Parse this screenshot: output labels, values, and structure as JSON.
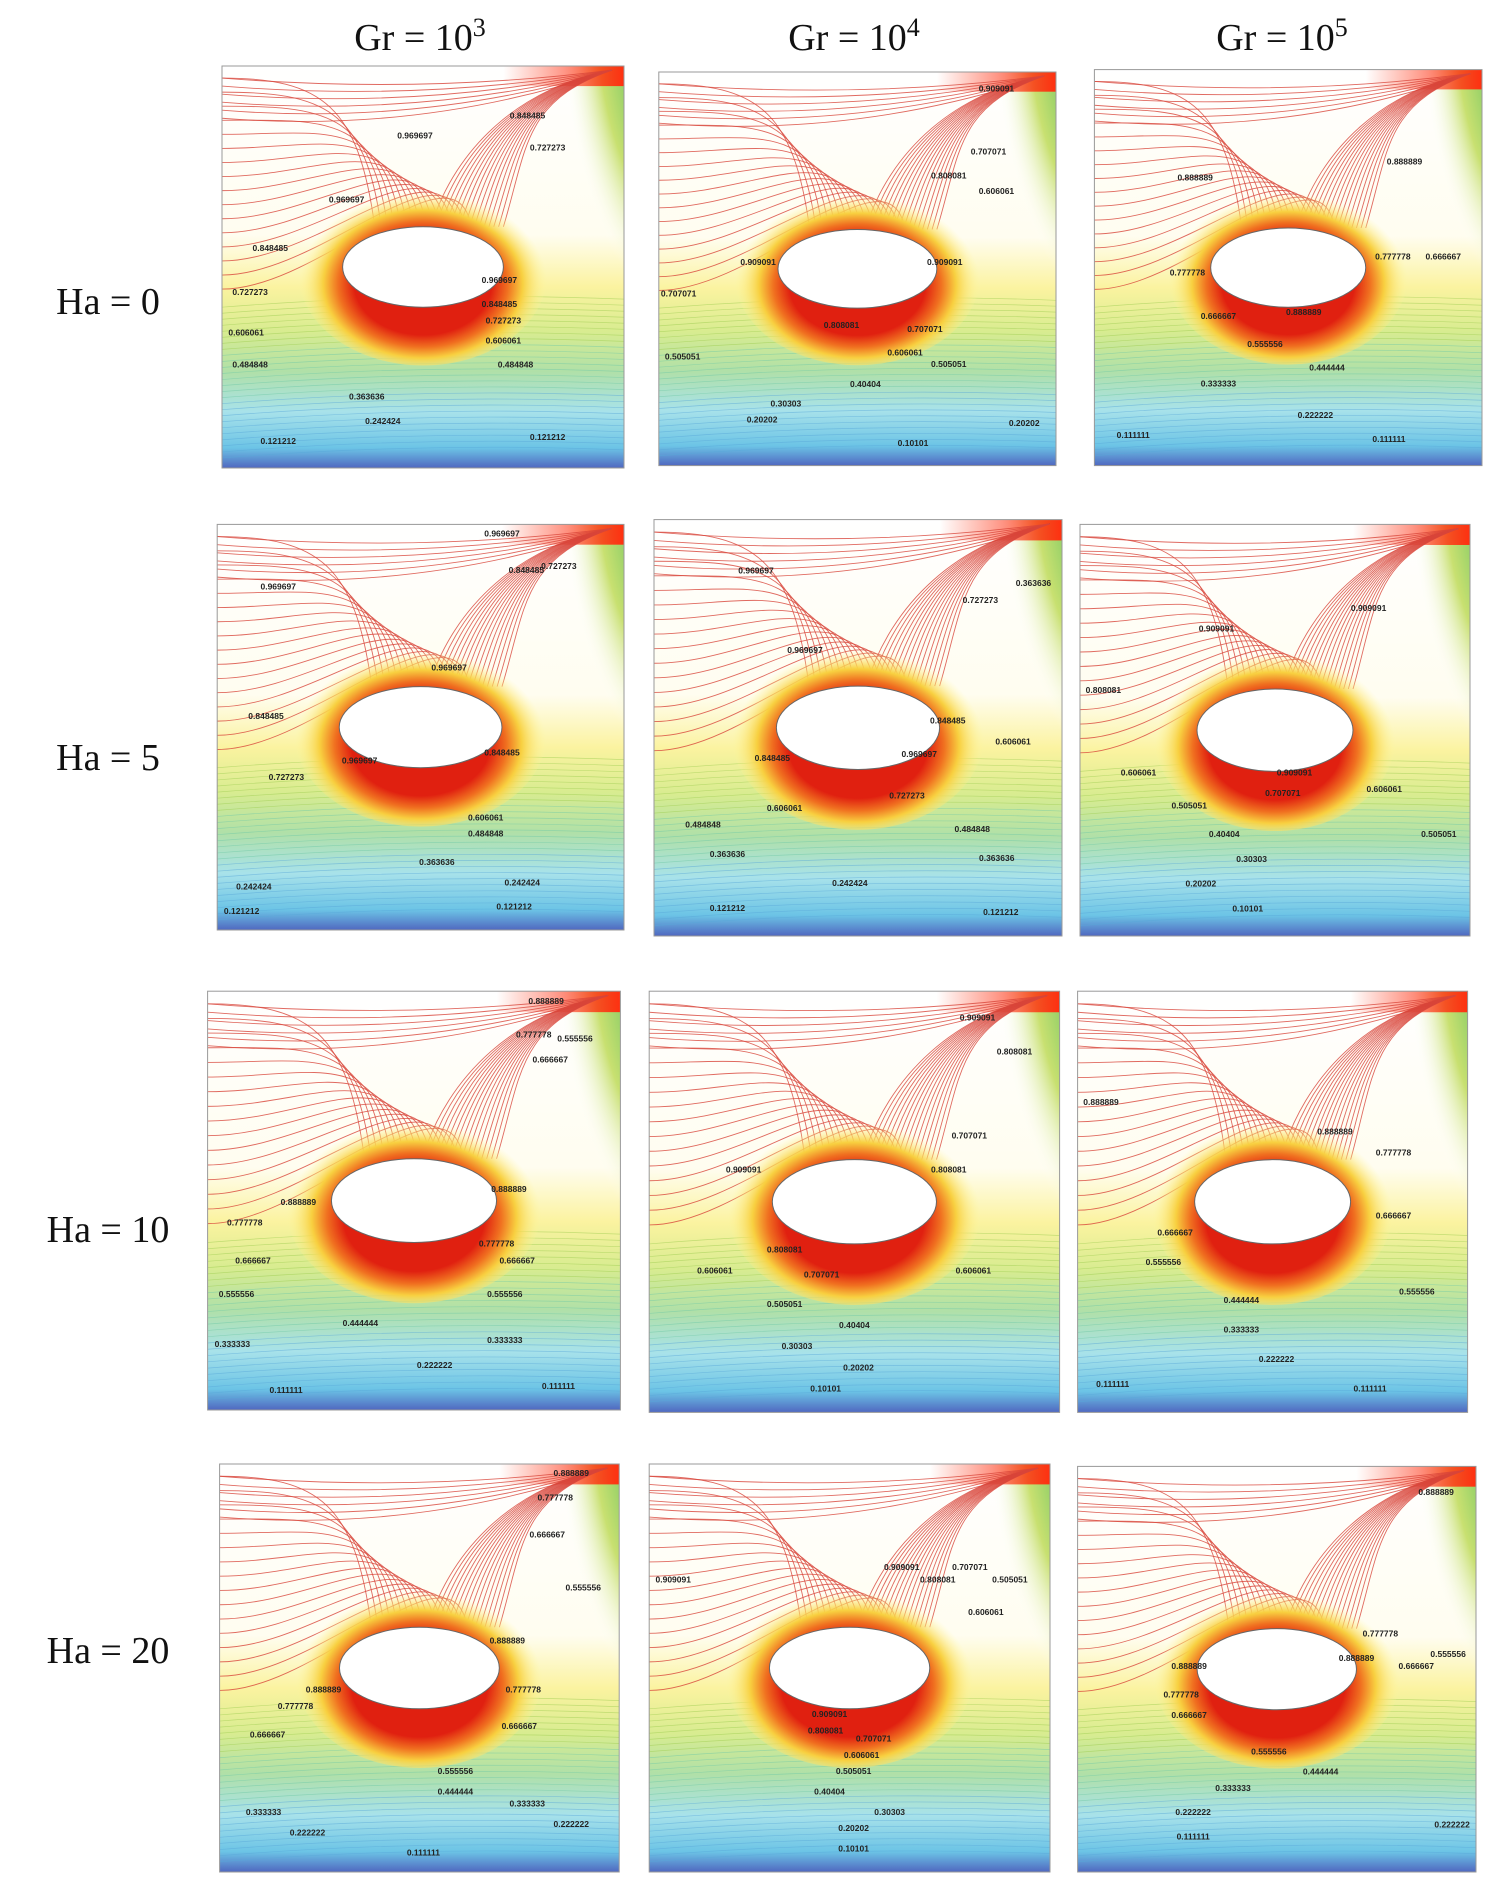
{
  "columns": [
    {
      "base": "Gr = 10",
      "exp": "3"
    },
    {
      "base": "Gr = 10",
      "exp": "4"
    },
    {
      "base": "Gr = 10",
      "exp": "5"
    }
  ],
  "rows": [
    "Ha = 0",
    "Ha = 5",
    "Ha = 10",
    "Ha = 20"
  ],
  "panels": [
    {
      "labels": [
        "0.969697",
        "0.848485",
        "0.727273",
        "0.969697",
        "0.848485",
        "0.727273",
        "0.606061",
        "0.484848",
        "0.969697",
        "0.848485",
        "0.727273",
        "0.606061",
        "0.484848",
        "0.363636",
        "0.242424",
        "0.121212",
        "0.121212"
      ]
    },
    {
      "labels": [
        "0.909091",
        "0.707071",
        "0.808081",
        "0.606061",
        "0.909091",
        "0.909091",
        "0.707071",
        "0.808081",
        "0.707071",
        "0.606061",
        "0.505051",
        "0.505051",
        "0.40404",
        "0.30303",
        "0.20202",
        "0.10101",
        "0.20202"
      ]
    },
    {
      "labels": [
        "0.888889",
        "0.888889",
        "0.777778",
        "0.777778",
        "0.666667",
        "0.666667",
        "0.888889",
        "0.555556",
        "0.444444",
        "0.333333",
        "0.222222",
        "0.111111",
        "0.111111"
      ]
    },
    {
      "labels": [
        "0.969697",
        "0.848485",
        "0.727273",
        "0.969697",
        "0.969697",
        "0.848485",
        "0.969697",
        "0.848485",
        "0.727273",
        "0.606061",
        "0.484848",
        "0.363636",
        "0.242424",
        "0.242424",
        "0.121212",
        "0.121212"
      ]
    },
    {
      "labels": [
        "0.969697",
        "0.969697",
        "0.727273",
        "0.363636",
        "0.848485",
        "0.848485",
        "0.969697",
        "0.606061",
        "0.727273",
        "0.606061",
        "0.484848",
        "0.484848",
        "0.363636",
        "0.363636",
        "0.242424",
        "0.121212",
        "0.121212"
      ]
    },
    {
      "labels": [
        "0.909091",
        "0.909091",
        "0.808081",
        "0.606061",
        "0.909091",
        "0.707071",
        "0.606061",
        "0.505051",
        "0.505051",
        "0.40404",
        "0.30303",
        "0.20202",
        "0.10101"
      ]
    },
    {
      "labels": [
        "0.888889",
        "0.777778",
        "0.666667",
        "0.555556",
        "0.888889",
        "0.888889",
        "0.777778",
        "0.777778",
        "0.666667",
        "0.666667",
        "0.555556",
        "0.555556",
        "0.444444",
        "0.333333",
        "0.333333",
        "0.222222",
        "0.111111",
        "0.111111"
      ]
    },
    {
      "labels": [
        "0.909091",
        "0.808081",
        "0.707071",
        "0.909091",
        "0.808081",
        "0.808081",
        "0.707071",
        "0.606061",
        "0.606061",
        "0.505051",
        "0.40404",
        "0.30303",
        "0.20202",
        "0.10101"
      ]
    },
    {
      "labels": [
        "0.888889",
        "0.888889",
        "0.777778",
        "0.666667",
        "0.666667",
        "0.555556",
        "0.444444",
        "0.333333",
        "0.555556",
        "0.222222",
        "0.111111",
        "0.111111"
      ]
    },
    {
      "labels": [
        "0.888889",
        "0.777778",
        "0.666667",
        "0.555556",
        "0.888889",
        "0.888889",
        "0.777778",
        "0.777778",
        "0.666667",
        "0.666667",
        "0.555556",
        "0.444444",
        "0.333333",
        "0.333333",
        "0.222222",
        "0.222222",
        "0.111111"
      ]
    },
    {
      "labels": [
        "0.909091",
        "0.909091",
        "0.808081",
        "0.707071",
        "0.505051",
        "0.606061",
        "0.909091",
        "0.808081",
        "0.707071",
        "0.606061",
        "0.505051",
        "0.40404",
        "0.30303",
        "0.20202",
        "0.10101"
      ]
    },
    {
      "labels": [
        "0.888889",
        "0.888889",
        "0.777778",
        "0.666667",
        "0.888889",
        "0.777778",
        "0.666667",
        "0.555556",
        "0.555556",
        "0.444444",
        "0.333333",
        "0.222222",
        "0.111111",
        "0.222222"
      ]
    }
  ]
}
